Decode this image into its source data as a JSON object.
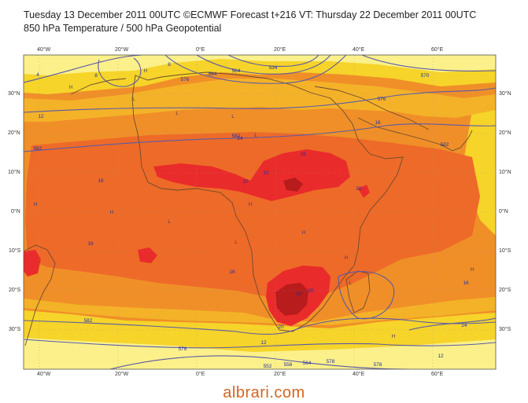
{
  "header": {
    "line1": "Tuesday 13 December 2011 00UTC ©ECMWF Forecast t+216 VT: Thursday 22 December 2011 00UTC",
    "line2": "850 hPa Temperature / 500 hPa Geopotential"
  },
  "axes": {
    "lon_ticks": [
      "40°W",
      "20°W",
      "0°E",
      "20°E",
      "40°E",
      "60°E"
    ],
    "lat_ticks_left": [
      "30°N",
      "20°N",
      "10°N",
      "0°N",
      "10°S",
      "20°S",
      "30°S"
    ],
    "lat_ticks_right": [
      "30°N",
      "20°N",
      "10°N",
      "0°N",
      "10°S",
      "20°S",
      "30°S"
    ]
  },
  "colors": {
    "pale_yellow": "#fbf08a",
    "yellow": "#f6d42a",
    "light_orange": "#f4b228",
    "orange": "#f08f28",
    "deep_orange": "#ee6a28",
    "red": "#ea2b2b",
    "dark_red": "#b81c1c",
    "contour": "#5a5aa8",
    "coast": "#6e4a2e",
    "label": "#2030a0"
  },
  "contours": {
    "geopotential_labels": [
      "534",
      "552",
      "556",
      "564",
      "564",
      "564",
      "570",
      "576",
      "576",
      "576",
      "578",
      "578",
      "582",
      "582",
      "582",
      "582"
    ],
    "temperature_labels": [
      "4",
      "8",
      "8",
      "12",
      "12",
      "12",
      "16",
      "16",
      "16",
      "16",
      "16",
      "16",
      "20",
      "20",
      "20",
      "20",
      "20",
      "20",
      "24",
      "24"
    ]
  },
  "pressure_centers": [
    "H",
    "H",
    "H",
    "H",
    "H",
    "H",
    "H",
    "H",
    "H",
    "L",
    "L",
    "L",
    "L",
    "L",
    "L",
    "L"
  ],
  "watermark": "albrari.com"
}
